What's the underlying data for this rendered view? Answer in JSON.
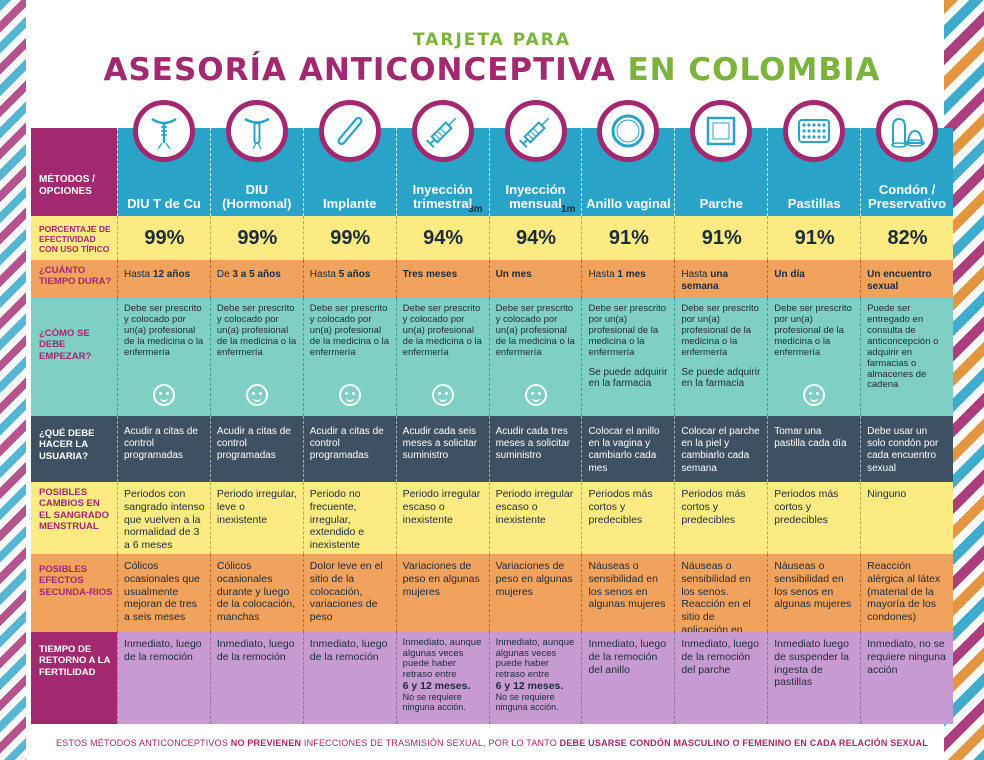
{
  "title": {
    "line1": "TARJETA PARA",
    "line2_part1": "ASESORÍA ANTICONCEPTIVA",
    "line2_part2": "EN COLOMBIA"
  },
  "colors": {
    "magenta": "#a2286f",
    "green": "#7bb33d",
    "blue": "#2aa3c9",
    "yellow": "#fbeb82",
    "orange": "#f1a25c",
    "teal": "#7fcfc4",
    "slate": "#3e5162",
    "lilac": "#c79bd1"
  },
  "rows": {
    "methods": "MÉTODOS / OPCIONES",
    "pct": "PORCENTAJE DE EFECTIVIDAD CON USO TÍPICO",
    "dur": "¿CUÁNTO TIEMPO DURA?",
    "start": "¿CÓMO SE DEBE EMPEZAR?",
    "do": "¿QUÉ DEBE HACER LA USUARIA?",
    "bleed": "POSIBLES CAMBIOS EN EL SANGRADO MENSTRUAL",
    "side": "POSIBLES EFECTOS SECUNDA-RIOS",
    "ret": "TIEMPO DE RETORNO A LA FERTILIDAD"
  },
  "methods": [
    {
      "name": "DIU T de Cu",
      "icon": "iud-copper-icon",
      "badge": "",
      "pct": "99%",
      "dur": {
        "a": "Hasta ",
        "b": "12 años",
        "c": ""
      },
      "start": "Debe ser prescrito y colocado por un(a) profesional de la medicina o la enfermería",
      "start_extra": "",
      "face": true,
      "do": "Acudir a citas de control programadas",
      "bleed": "Periodos con sangrado intenso que vuelven a la normalidad de 3 a 6 meses",
      "side": "Cólicos ocasionales que usualmente mejoran de tres a seis meses",
      "ret": "Inmediato, luego de la remoción",
      "ret_bold": "",
      "ret_note": ""
    },
    {
      "name": "DIU (Hormonal)",
      "icon": "iud-hormonal-icon",
      "badge": "",
      "pct": "99%",
      "dur": {
        "a": "De ",
        "b": "3 a 5 años",
        "c": ""
      },
      "start": "Debe ser prescrito y colocado por un(a) profesional de la medicina o la enfermería",
      "start_extra": "",
      "face": true,
      "do": "Acudir a citas de control programadas",
      "bleed": "Periodo irregular, leve o inexistente",
      "side": "Cólicos ocasionales durante y luego de la colocación, manchas",
      "ret": "Inmediato, luego de la remoción",
      "ret_bold": "",
      "ret_note": ""
    },
    {
      "name": "Implante",
      "icon": "implant-icon",
      "badge": "",
      "pct": "99%",
      "dur": {
        "a": "Hasta ",
        "b": "5 años",
        "c": ""
      },
      "start": "Debe ser prescrito y colocado por un(a) profesional de la medicina o la enfermería",
      "start_extra": "",
      "face": true,
      "do": "Acudir a citas de control programadas",
      "bleed": "Periodo no frecuente, irregular, extendido e inexistente",
      "side": "Dolor leve en el sitio de la colocación, variaciones de peso",
      "ret": "Inmediato, luego de la remoción",
      "ret_bold": "",
      "ret_note": ""
    },
    {
      "name": "Inyección trimestral",
      "icon": "syringe-icon",
      "badge": "3m",
      "pct": "94%",
      "dur": {
        "a": "",
        "b": "Tres meses",
        "c": ""
      },
      "start": "Debe ser prescrito y colocado por un(a) profesional de la medicina o la enfermería",
      "start_extra": "",
      "face": true,
      "do": "Acudir cada seis meses a solicitar suministro",
      "bleed": "Periodo irregular escaso o inexistente",
      "side": "Variaciones de peso en algunas mujeres",
      "ret": "Inmediato, aunque algunas veces puede haber retraso entre",
      "ret_bold": "6 y 12 meses.",
      "ret_note": "No se requiere ninguna acción."
    },
    {
      "name": "Inyección mensual",
      "icon": "syringe-icon",
      "badge": "1m",
      "pct": "94%",
      "dur": {
        "a": "",
        "b": "Un mes",
        "c": ""
      },
      "start": "Debe ser prescrito y colocado por un(a) profesional de la medicina o la enfermería",
      "start_extra": "",
      "face": true,
      "do": "Acudir cada tres meses a solicitar suministro",
      "bleed": "Periodo irregular escaso o inexistente",
      "side": "Variaciones de peso en algunas mujeres",
      "ret": "Inmediato, aunque algunas veces puede haber retraso entre",
      "ret_bold": "6 y 12 meses.",
      "ret_note": "No se requiere ninguna acción."
    },
    {
      "name": "Anillo vaginal",
      "icon": "ring-icon",
      "badge": "",
      "pct": "91%",
      "dur": {
        "a": "Hasta ",
        "b": "1 mes",
        "c": ""
      },
      "start": "Debe ser prescrito por un(a) profesional de la medicina o la enfermería",
      "start_extra": "Se puede adquirir en la farmacia",
      "face": false,
      "do": "Colocar el anillo en la vagina y cambiarlo cada mes",
      "bleed": "Periodos más cortos y predecibles",
      "side": "Náuseas o sensibilidad en los senos en algunas mujeres",
      "ret": "Inmediato, luego de la remoción del anillo",
      "ret_bold": "",
      "ret_note": ""
    },
    {
      "name": "Parche",
      "icon": "patch-icon",
      "badge": "",
      "pct": "91%",
      "dur": {
        "a": "Hasta ",
        "b": "una semana",
        "c": ""
      },
      "start": "Debe ser prescrito por un(a) profesional de la medicina o la enfermería",
      "start_extra": "Se puede adquirir en la farmacia",
      "face": false,
      "do": "Colocar el parche en la piel y cambiarlo cada semana",
      "bleed": "Periodos más cortos y predecibles",
      "side": "Náuseas o sensibilidad en los senos. Reacción en el sitio de aplicación en algunas mujeres",
      "ret": "Inmediato, luego de la remoción del parche",
      "ret_bold": "",
      "ret_note": ""
    },
    {
      "name": "Pastillas",
      "icon": "pill-pack-icon",
      "badge": "",
      "pct": "91%",
      "dur": {
        "a": "",
        "b": "Un día",
        "c": ""
      },
      "start": "Debe ser prescrito por un(a) profesional de la medicina o la enfermería",
      "start_extra": "",
      "face": true,
      "do": "Tomar una pastilla cada día",
      "bleed": "Periodos más cortos y predecibles",
      "side": "Náuseas o sensibilidad en los senos en algunas mujeres",
      "ret": "Inmediato luego de suspender la ingesta de pastillas",
      "ret_bold": "",
      "ret_note": ""
    },
    {
      "name": "Condón / Preservativo",
      "icon": "condom-icon",
      "badge": "",
      "pct": "82%",
      "dur": {
        "a": "",
        "b": "Un encuentro sexual",
        "c": ""
      },
      "start": "Puede ser entregado en consulta de anticoncepción o adquirir en farmacias o almacenes de cadena",
      "start_extra": "",
      "face": false,
      "do": "Debe usar un solo condón por cada encuentro sexual",
      "bleed": "Ninguno",
      "side": "Reacción alérgica al látex (material de la mayoría de los condones)",
      "ret": "Inmediato, no se requiere ninguna acción",
      "ret_bold": "",
      "ret_note": ""
    }
  ],
  "footer": {
    "p1": "ESTOS MÉTODOS ANTICONCEPTIVOS ",
    "p2": "NO PREVIENEN",
    "p3": " INFECCIONES DE TRASMISIÓN SEXUAL, POR LO TANTO ",
    "p4": "DEBE USARSE CONDÓN MASCULINO O FEMENINO EN CADA RELACIÓN SEXUAL"
  }
}
